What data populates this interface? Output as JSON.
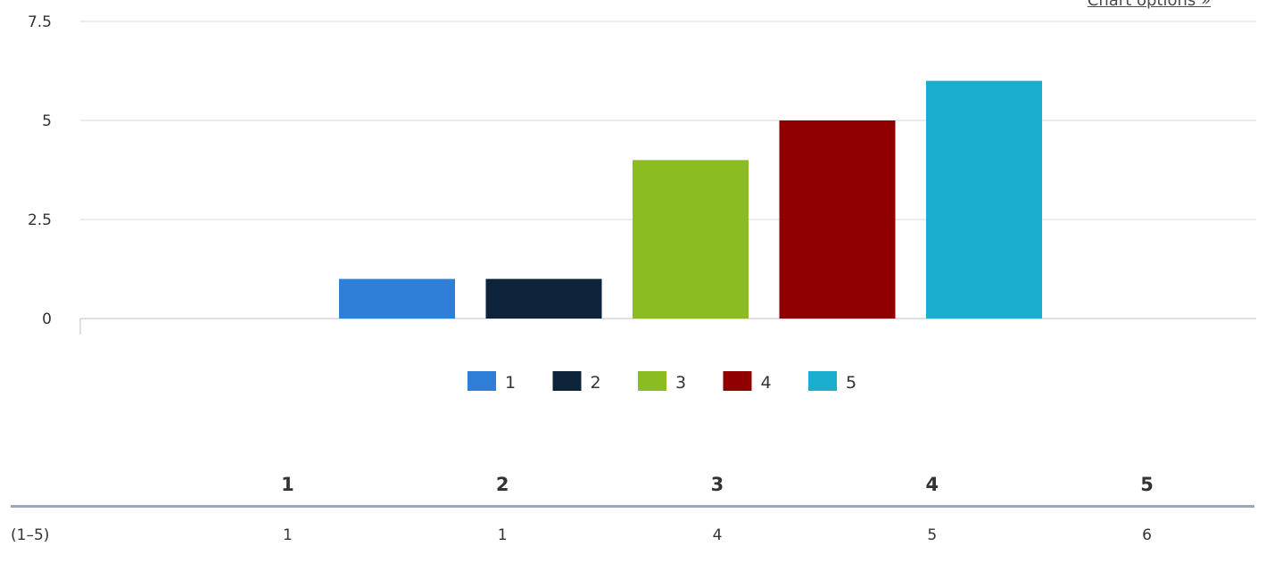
{
  "header": {
    "chart_options_label": "Chart options »"
  },
  "chart_data": {
    "type": "bar",
    "categories": [
      "1",
      "2",
      "3",
      "4",
      "5"
    ],
    "series": [
      {
        "name": "1",
        "value": 1,
        "color": "#2f7ed8"
      },
      {
        "name": "2",
        "value": 1,
        "color": "#0d233a"
      },
      {
        "name": "3",
        "value": 4,
        "color": "#8bbc21"
      },
      {
        "name": "4",
        "value": 5,
        "color": "#910000"
      },
      {
        "name": "5",
        "value": 6,
        "color": "#1aadce"
      }
    ],
    "yticks": [
      0,
      2.5,
      5,
      7.5
    ],
    "ylim": [
      0,
      7.5
    ],
    "grid": true,
    "legend_position": "bottom-center"
  },
  "table": {
    "headers": [
      "1",
      "2",
      "3",
      "4",
      "5"
    ],
    "rows": [
      {
        "label": "(1–5)",
        "values": [
          "1",
          "1",
          "4",
          "5",
          "6"
        ]
      }
    ]
  }
}
